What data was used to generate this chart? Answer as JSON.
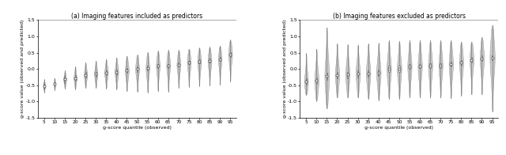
{
  "title_a": "(a) Imaging features included as predictors",
  "title_b": "(b) Imaging features excluded as predictors",
  "xlabel": "g-score quantile (observed)",
  "ylabel": "g-score value (observed and predicted)",
  "quantiles": [
    5,
    10,
    15,
    20,
    25,
    30,
    35,
    40,
    45,
    50,
    55,
    60,
    65,
    70,
    75,
    80,
    85,
    90,
    95
  ],
  "ylim": [
    -1.5,
    1.5
  ],
  "panel_a_medians": [
    -0.52,
    -0.46,
    -0.32,
    -0.28,
    -0.18,
    -0.15,
    -0.12,
    -0.1,
    -0.05,
    0.0,
    0.03,
    0.1,
    0.11,
    0.13,
    0.2,
    0.22,
    0.25,
    0.3,
    0.45
  ],
  "panel_b_medians": [
    -0.38,
    -0.35,
    -0.22,
    -0.18,
    -0.17,
    -0.14,
    -0.14,
    -0.12,
    0.0,
    0.0,
    0.08,
    0.09,
    0.1,
    0.11,
    0.15,
    0.2,
    0.28,
    0.32,
    0.35
  ],
  "panel_a_range_low": [
    -0.72,
    -0.65,
    -0.6,
    -0.62,
    -0.58,
    -0.58,
    -0.6,
    -0.62,
    -0.68,
    -0.7,
    -0.72,
    -0.68,
    -0.7,
    -0.58,
    -0.55,
    -0.52,
    -0.5,
    -0.48,
    -0.38
  ],
  "panel_a_range_high": [
    -0.32,
    -0.28,
    -0.05,
    0.08,
    0.2,
    0.25,
    0.3,
    0.35,
    0.4,
    0.44,
    0.52,
    0.56,
    0.58,
    0.58,
    0.62,
    0.65,
    0.68,
    0.72,
    0.9
  ],
  "panel_b_range_low": [
    -0.8,
    -0.98,
    -1.22,
    -0.88,
    -0.88,
    -0.88,
    -0.92,
    -0.96,
    -0.92,
    -0.92,
    -0.88,
    -0.88,
    -0.88,
    -0.88,
    -0.9,
    -0.82,
    -0.78,
    -0.78,
    -1.3
  ],
  "panel_b_range_high": [
    0.48,
    0.62,
    1.28,
    0.78,
    0.75,
    0.74,
    0.78,
    0.8,
    0.88,
    0.86,
    0.88,
    0.88,
    0.88,
    0.88,
    0.88,
    0.84,
    0.84,
    0.98,
    1.35
  ],
  "panel_a_iqr_low": [
    -0.6,
    -0.52,
    -0.42,
    -0.36,
    -0.26,
    -0.23,
    -0.2,
    -0.18,
    -0.12,
    -0.08,
    -0.05,
    0.04,
    0.04,
    0.08,
    0.14,
    0.17,
    0.19,
    0.24,
    0.38
  ],
  "panel_a_iqr_high": [
    -0.44,
    -0.4,
    -0.22,
    -0.18,
    -0.1,
    -0.08,
    -0.05,
    -0.03,
    0.02,
    0.08,
    0.1,
    0.16,
    0.16,
    0.19,
    0.26,
    0.29,
    0.31,
    0.38,
    0.52
  ],
  "panel_b_iqr_low": [
    -0.48,
    -0.46,
    -0.34,
    -0.29,
    -0.28,
    -0.25,
    -0.24,
    -0.22,
    -0.1,
    -0.09,
    0.01,
    0.02,
    0.03,
    0.04,
    0.07,
    0.11,
    0.19,
    0.24,
    0.27
  ],
  "panel_b_iqr_high": [
    -0.28,
    -0.26,
    -0.12,
    -0.09,
    -0.08,
    -0.05,
    -0.05,
    -0.03,
    0.1,
    0.1,
    0.15,
    0.16,
    0.17,
    0.18,
    0.22,
    0.28,
    0.36,
    0.41,
    0.43
  ],
  "panel_a_max_widths": [
    0.1,
    0.11,
    0.14,
    0.14,
    0.16,
    0.16,
    0.17,
    0.17,
    0.18,
    0.18,
    0.17,
    0.17,
    0.18,
    0.18,
    0.18,
    0.18,
    0.18,
    0.17,
    0.18
  ],
  "panel_b_max_widths": [
    0.18,
    0.2,
    0.22,
    0.2,
    0.2,
    0.2,
    0.21,
    0.21,
    0.21,
    0.21,
    0.2,
    0.2,
    0.2,
    0.19,
    0.2,
    0.19,
    0.19,
    0.2,
    0.24
  ],
  "hline_color": "#aaaaaa",
  "violin_facecolor": "#cccccc",
  "violin_edgecolor": "#999999",
  "box_color": "white",
  "box_edgecolor": "#666666",
  "whisker_color": "#666666",
  "hatch_color": "#aaaaaa",
  "median_color": "white",
  "median_edgecolor": "#444444"
}
